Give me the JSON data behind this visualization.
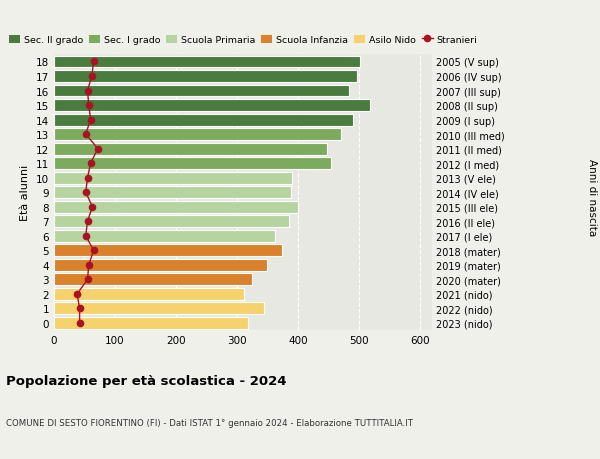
{
  "ages": [
    18,
    17,
    16,
    15,
    14,
    13,
    12,
    11,
    10,
    9,
    8,
    7,
    6,
    5,
    4,
    3,
    2,
    1,
    0
  ],
  "bar_values": [
    502,
    497,
    484,
    519,
    491,
    470,
    447,
    455,
    390,
    388,
    400,
    385,
    362,
    374,
    350,
    325,
    312,
    345,
    318
  ],
  "stranieri_values": [
    65,
    62,
    55,
    57,
    60,
    52,
    72,
    60,
    55,
    52,
    63,
    55,
    52,
    65,
    57,
    55,
    38,
    42,
    42
  ],
  "right_labels": [
    "2005 (V sup)",
    "2006 (IV sup)",
    "2007 (III sup)",
    "2008 (II sup)",
    "2009 (I sup)",
    "2010 (III med)",
    "2011 (II med)",
    "2012 (I med)",
    "2013 (V ele)",
    "2014 (IV ele)",
    "2015 (III ele)",
    "2016 (II ele)",
    "2017 (I ele)",
    "2018 (mater)",
    "2019 (mater)",
    "2020 (mater)",
    "2021 (nido)",
    "2022 (nido)",
    "2023 (nido)"
  ],
  "bar_colors": [
    "#4a7c3f",
    "#4a7c3f",
    "#4a7c3f",
    "#4a7c3f",
    "#4a7c3f",
    "#7dab5e",
    "#7dab5e",
    "#7dab5e",
    "#b5d4a0",
    "#b5d4a0",
    "#b5d4a0",
    "#b5d4a0",
    "#b5d4a0",
    "#d9822b",
    "#d9822b",
    "#d9822b",
    "#f5d26b",
    "#f5d26b",
    "#f5d26b"
  ],
  "legend_labels": [
    "Sec. II grado",
    "Sec. I grado",
    "Scuola Primaria",
    "Scuola Infanzia",
    "Asilo Nido",
    "Stranieri"
  ],
  "legend_colors": [
    "#4a7c3f",
    "#7dab5e",
    "#b5d4a0",
    "#d9822b",
    "#f5d26b",
    "#aa1122"
  ],
  "stranieri_color": "#aa1122",
  "title": "Popolazione per età scolastica - 2024",
  "subtitle": "COMUNE DI SESTO FIORENTINO (FI) - Dati ISTAT 1° gennaio 2024 - Elaborazione TUTTITALIA.IT",
  "xlabel_left": "Età alunni",
  "xlabel_right": "Anni di nascita",
  "xlim": [
    0,
    620
  ],
  "xticks": [
    0,
    100,
    200,
    300,
    400,
    500,
    600
  ],
  "bg_color": "#f0f0eb",
  "plot_bg": "#e8e8e3"
}
